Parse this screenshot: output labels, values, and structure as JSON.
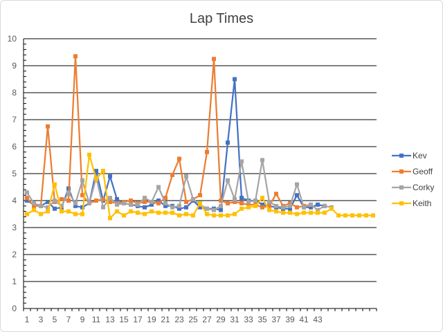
{
  "chart_data": {
    "type": "line",
    "title": "Lap Times",
    "xlabel": "",
    "ylabel": "",
    "ylim": [
      0,
      10
    ],
    "y_ticks": [
      0,
      1,
      2,
      3,
      4,
      5,
      6,
      7,
      8,
      9,
      10
    ],
    "x_min": 1,
    "x_max": 51,
    "x_tick_labels": [
      "1",
      "3",
      "5",
      "7",
      "9",
      "11",
      "13",
      "15",
      "17",
      "19",
      "21",
      "23",
      "25",
      "27",
      "29",
      "31",
      "33",
      "35",
      "37",
      "39",
      "41",
      "43"
    ],
    "grid": "horizontal",
    "legend_position": "right",
    "series": [
      {
        "name": "Kev",
        "color": "#4472C4",
        "values": [
          4.0,
          3.85,
          3.8,
          3.95,
          3.7,
          3.75,
          4.45,
          3.8,
          3.75,
          3.9,
          5.1,
          4.0,
          4.9,
          4.05,
          3.9,
          3.85,
          3.8,
          3.75,
          3.85,
          4.0,
          3.8,
          3.8,
          3.7,
          3.75,
          4.0,
          3.75,
          3.7,
          3.7,
          3.65,
          6.15,
          8.5,
          4.1,
          4.0,
          4.0,
          3.85,
          3.8,
          3.75,
          3.7,
          3.7,
          4.2,
          3.75,
          3.75,
          3.85,
          3.8
        ]
      },
      {
        "name": "Geoff",
        "color": "#ED7D31",
        "values": [
          4.1,
          3.8,
          3.8,
          6.75,
          3.95,
          4.05,
          4.0,
          9.35,
          4.2,
          3.9,
          4.0,
          4.05,
          3.95,
          3.9,
          3.95,
          4.0,
          3.9,
          3.95,
          3.95,
          3.9,
          4.1,
          4.95,
          5.55,
          3.95,
          4.05,
          4.2,
          5.8,
          9.25,
          4.0,
          3.9,
          3.95,
          3.9,
          3.85,
          3.85,
          3.75,
          3.8,
          4.25,
          3.8,
          3.9,
          3.75,
          3.8,
          3.85
        ]
      },
      {
        "name": "Corky",
        "color": "#A5A5A5",
        "values": [
          4.3,
          3.9,
          3.8,
          3.75,
          4.0,
          3.8,
          4.3,
          3.9,
          4.75,
          3.9,
          4.85,
          3.75,
          4.1,
          3.85,
          3.9,
          3.85,
          3.85,
          4.1,
          3.95,
          4.5,
          3.9,
          3.75,
          3.8,
          4.9,
          4.05,
          3.85,
          3.7,
          3.65,
          3.8,
          4.75,
          4.05,
          5.45,
          3.95,
          4.0,
          5.5,
          3.95,
          3.8,
          3.75,
          3.8,
          4.6,
          3.75,
          3.85,
          3.65,
          3.8,
          3.75
        ]
      },
      {
        "name": "Keith",
        "color": "#FFC000",
        "values": [
          3.5,
          3.65,
          3.5,
          3.6,
          4.6,
          3.6,
          3.6,
          3.5,
          3.5,
          5.7,
          4.8,
          5.1,
          3.35,
          3.6,
          3.45,
          3.6,
          3.55,
          3.5,
          3.6,
          3.55,
          3.55,
          3.55,
          3.45,
          3.5,
          3.45,
          3.9,
          3.5,
          3.45,
          3.45,
          3.45,
          3.5,
          3.7,
          3.75,
          3.8,
          4.1,
          3.65,
          3.6,
          3.55,
          3.55,
          3.5,
          3.55,
          3.55,
          3.55,
          3.55,
          3.7,
          3.45,
          3.45,
          3.45,
          3.45,
          3.45,
          3.45
        ]
      }
    ]
  }
}
